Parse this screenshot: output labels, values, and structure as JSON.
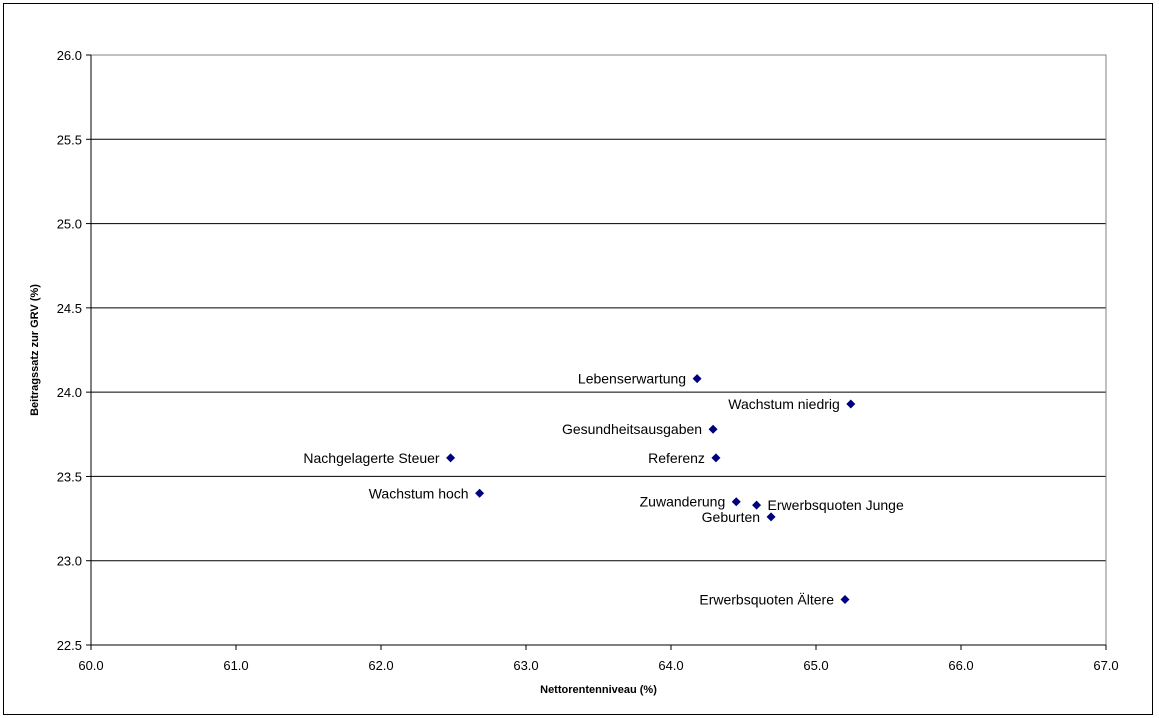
{
  "chart_data": {
    "type": "scatter",
    "xlabel": "Nettorentenniveau (%)",
    "ylabel": "Beitragssatz zur GRV (%)",
    "xlim": [
      60.0,
      67.0
    ],
    "ylim": [
      22.5,
      26.0
    ],
    "x_ticks": [
      "60.0",
      "61.0",
      "62.0",
      "63.0",
      "64.0",
      "65.0",
      "66.0",
      "67.0"
    ],
    "y_ticks": [
      "22.5",
      "23.0",
      "23.5",
      "24.0",
      "24.5",
      "25.0",
      "25.5",
      "26.0"
    ],
    "grid": "horizontal",
    "marker": "diamond",
    "marker_color": "#000080",
    "points": [
      {
        "label": "Lebenserwartung",
        "x": 64.18,
        "y": 24.08,
        "label_side": "left"
      },
      {
        "label": "Wachstum niedrig",
        "x": 65.24,
        "y": 23.93,
        "label_side": "left"
      },
      {
        "label": "Gesundheitsausgaben",
        "x": 64.29,
        "y": 23.78,
        "label_side": "left"
      },
      {
        "label": "Nachgelagerte Steuer",
        "x": 62.48,
        "y": 23.61,
        "label_side": "left"
      },
      {
        "label": "Referenz",
        "x": 64.31,
        "y": 23.61,
        "label_side": "left"
      },
      {
        "label": "Wachstum hoch",
        "x": 62.68,
        "y": 23.4,
        "label_side": "left"
      },
      {
        "label": "Zuwanderung",
        "x": 64.45,
        "y": 23.35,
        "label_side": "left"
      },
      {
        "label": "Erwerbsquoten Junge",
        "x": 64.59,
        "y": 23.33,
        "label_side": "right"
      },
      {
        "label": "Geburten",
        "x": 64.69,
        "y": 23.26,
        "label_side": "left"
      },
      {
        "label": "Erwerbsquoten Ältere",
        "x": 65.2,
        "y": 22.77,
        "label_side": "left"
      }
    ]
  }
}
